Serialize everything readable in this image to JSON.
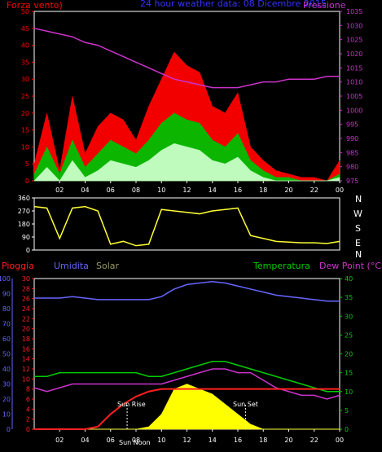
{
  "header": {
    "wind_label": "Forza vento)",
    "title": "24 hour weather data: 08 Dicembre 2015",
    "pressure_label": "Pressione"
  },
  "lower_header": {
    "rain_label": "Pioggia",
    "humidity_label": "Umidita",
    "solar_label": "Solar",
    "temperature_label": "Temperatura",
    "dewpoint_label": "Dew Point (°C)"
  },
  "annotations": {
    "sunrise": "Sun Rise",
    "sunset": "Sun Set",
    "noon": "Sun Noon"
  },
  "compass": [
    "N",
    "W",
    "S",
    "E",
    "N"
  ],
  "colors": {
    "wind_gust": "#ff0000",
    "wind_avg": "#00c000",
    "wind_min": "#c8ffc8",
    "pressure": "#cc33cc",
    "direction": "#ffff33",
    "humidity": "#6666ff",
    "rain": "#ff2020",
    "solar": "#ffff00",
    "temperature": "#00cc00",
    "dewpoint": "#cc33cc",
    "axes": "#ffffff"
  },
  "chart_data": [
    {
      "type": "line",
      "name": "wind-pressure",
      "x_ticks": [
        "02",
        "04",
        "06",
        "08",
        "10",
        "12",
        "14",
        "16",
        "18",
        "20",
        "22",
        "00"
      ],
      "y_left_ticks": [
        0,
        5,
        10,
        15,
        20,
        25,
        30,
        35,
        40,
        45,
        50
      ],
      "y_right_ticks": [
        975,
        980,
        985,
        990,
        995,
        1000,
        1005,
        1010,
        1015,
        1020,
        1025,
        1030,
        1035
      ],
      "ylim_left": [
        0,
        50
      ],
      "ylim_right": [
        975,
        1035
      ],
      "hours": [
        0,
        1,
        2,
        3,
        4,
        5,
        6,
        7,
        8,
        9,
        10,
        11,
        12,
        13,
        14,
        15,
        16,
        17,
        18,
        19,
        20,
        21,
        22,
        23,
        24
      ],
      "series": [
        {
          "role": "gust",
          "values": [
            5,
            20,
            3,
            25,
            8,
            16,
            20,
            18,
            12,
            22,
            30,
            38,
            34,
            32,
            22,
            20,
            26,
            10,
            6,
            3,
            2,
            1,
            1,
            0,
            6
          ]
        },
        {
          "role": "avg",
          "values": [
            2,
            10,
            2,
            12,
            4,
            8,
            12,
            10,
            8,
            12,
            17,
            20,
            18,
            17,
            12,
            10,
            14,
            6,
            3,
            1,
            1,
            0,
            0,
            0,
            2
          ]
        },
        {
          "role": "min",
          "values": [
            0,
            4,
            0,
            6,
            1,
            3,
            6,
            5,
            4,
            6,
            9,
            11,
            10,
            9,
            6,
            5,
            7,
            3,
            1,
            0,
            0,
            0,
            0,
            0,
            1
          ]
        },
        {
          "role": "pressure",
          "values": [
            1029,
            1028,
            1027,
            1026,
            1024,
            1023,
            1021,
            1019,
            1017,
            1015,
            1013,
            1011,
            1010,
            1009,
            1008,
            1008,
            1008,
            1009,
            1010,
            1010,
            1011,
            1011,
            1011,
            1012,
            1012
          ]
        }
      ]
    },
    {
      "type": "line",
      "name": "wind-direction",
      "y_ticks": [
        0,
        90,
        180,
        270,
        360
      ],
      "ylim": [
        0,
        360
      ],
      "hours": [
        0,
        1,
        2,
        3,
        4,
        5,
        6,
        7,
        8,
        9,
        10,
        11,
        12,
        13,
        14,
        15,
        16,
        17,
        18,
        19,
        20,
        21,
        22,
        23,
        24
      ],
      "series": [
        {
          "role": "direction",
          "values": [
            300,
            290,
            80,
            290,
            300,
            270,
            40,
            60,
            30,
            40,
            280,
            270,
            260,
            250,
            270,
            280,
            290,
            100,
            80,
            60,
            55,
            50,
            50,
            45,
            60
          ]
        }
      ]
    },
    {
      "type": "line",
      "name": "temp-humidity-rain-solar",
      "x_ticks": [
        "02",
        "04",
        "06",
        "08",
        "10",
        "12",
        "14",
        "16",
        "18",
        "20",
        "22",
        "00"
      ],
      "y_humidity_ticks": [
        0,
        10,
        20,
        30,
        40,
        50,
        60,
        70,
        80,
        90,
        100
      ],
      "y_rain_ticks": [
        0,
        2,
        4,
        6,
        8,
        10,
        12,
        14,
        16,
        18,
        20,
        22,
        24,
        26,
        28,
        30
      ],
      "y_temp_ticks": [
        0,
        5,
        10,
        15,
        20,
        25,
        30,
        35,
        40
      ],
      "ylim_humidity": [
        0,
        100
      ],
      "ylim_rain": [
        0,
        30
      ],
      "ylim_temp": [
        0,
        40
      ],
      "hours": [
        0,
        1,
        2,
        3,
        4,
        5,
        6,
        7,
        8,
        9,
        10,
        11,
        12,
        13,
        14,
        15,
        16,
        17,
        18,
        19,
        20,
        21,
        22,
        23,
        24
      ],
      "series": [
        {
          "role": "humidity",
          "values": [
            87,
            87,
            87,
            88,
            87,
            86,
            86,
            86,
            86,
            86,
            88,
            93,
            96,
            97,
            98,
            97,
            95,
            93,
            91,
            89,
            88,
            87,
            86,
            85,
            85
          ]
        },
        {
          "role": "rain",
          "values": [
            0,
            0,
            0,
            0,
            0,
            0.5,
            3,
            5,
            6.5,
            7.5,
            8,
            8,
            8,
            8,
            8,
            8,
            8,
            8,
            8,
            8,
            8,
            8,
            8,
            8,
            8
          ]
        },
        {
          "role": "temperature",
          "values": [
            14,
            14,
            15,
            15,
            15,
            15,
            15,
            15,
            15,
            14,
            14,
            15,
            16,
            17,
            18,
            18,
            17,
            16,
            15,
            14,
            13,
            12,
            11,
            10,
            10
          ]
        },
        {
          "role": "dewpoint",
          "values": [
            11,
            10,
            11,
            12,
            12,
            12,
            12,
            12,
            12,
            12,
            12,
            13,
            14,
            15,
            16,
            16,
            15,
            15,
            13,
            11,
            10,
            9,
            9,
            8,
            9
          ]
        },
        {
          "role": "solar",
          "values": [
            0,
            0,
            0,
            0,
            0,
            0,
            0,
            0,
            0,
            0.5,
            3,
            8,
            9,
            8,
            7,
            5,
            3,
            1,
            0,
            0,
            0,
            0,
            0,
            0,
            0
          ]
        }
      ]
    }
  ]
}
